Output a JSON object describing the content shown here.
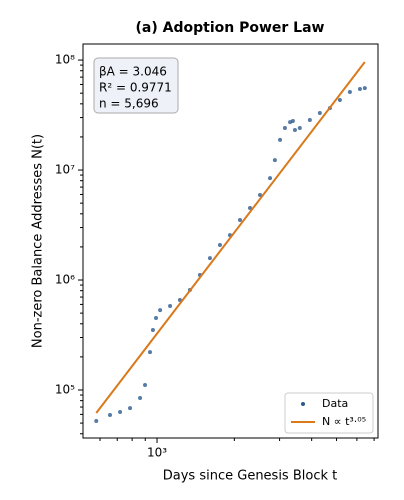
{
  "chart_data": {
    "type": "scatter",
    "title": "(a) Adoption Power Law",
    "x_label": "Days since Genesis Block t",
    "y_label": "Non-zero Balance Addresses N(t)",
    "x_log": true,
    "y_log": true,
    "xlim": [
      515,
      7250
    ],
    "ylim": [
      36600,
      140000000
    ],
    "xticks": [
      {
        "value": 1000,
        "label": "10³"
      }
    ],
    "xminorticks": [
      600,
      700,
      800,
      900,
      2000,
      3000,
      4000,
      5000,
      6000,
      7000
    ],
    "yticks": [
      {
        "value": 100000,
        "label": "10⁵"
      },
      {
        "value": 1000000,
        "label": "10⁶"
      },
      {
        "value": 10000000,
        "label": "10⁷"
      },
      {
        "value": 100000000,
        "label": "10⁸"
      }
    ],
    "yminorticks": [
      40000,
      50000,
      60000,
      70000,
      80000,
      90000,
      200000,
      300000,
      400000,
      500000,
      600000,
      700000,
      800000,
      900000,
      2000000,
      3000000,
      4000000,
      5000000,
      6000000,
      7000000,
      8000000,
      9000000,
      20000000,
      30000000,
      40000000,
      50000000,
      60000000,
      70000000,
      80000000,
      90000000
    ],
    "annotation": [
      "βA = 3.046",
      "R² = 0.9771",
      "n = 5,696"
    ],
    "legend": "lower right",
    "series": [
      {
        "name": "Data",
        "type": "scatter",
        "color": "#2c5a8e",
        "x": [
          580,
          656,
          718,
          785,
          859,
          898,
          939,
          964,
          991,
          1028,
          1124,
          1228,
          1343,
          1469,
          1607,
          1758,
          1923,
          2104,
          2301,
          2518,
          2754,
          2877,
          3013,
          3148,
          3296,
          3381,
          3443,
          3597,
          3936,
          4305,
          4710,
          5152,
          5636,
          6166,
          6442
        ],
        "values": [
          52200,
          59300,
          63100,
          68500,
          84500,
          111000,
          221000,
          351000,
          452000,
          533000,
          581000,
          658000,
          811000,
          1110000,
          1580000,
          2080000,
          2560000,
          3510000,
          4520000,
          5930000,
          8450000,
          12300000,
          18800000,
          24100000,
          27300000,
          27900000,
          23100000,
          24100000,
          28500000,
          33000000,
          36600000,
          43300000,
          51200000,
          54500000,
          55600000
        ]
      },
      {
        "name": "N ∝ t³·⁰⁵",
        "type": "line",
        "color": "#d9791c",
        "x": [
          580,
          6442
        ],
        "values": [
          61800,
          96000000
        ]
      }
    ]
  }
}
